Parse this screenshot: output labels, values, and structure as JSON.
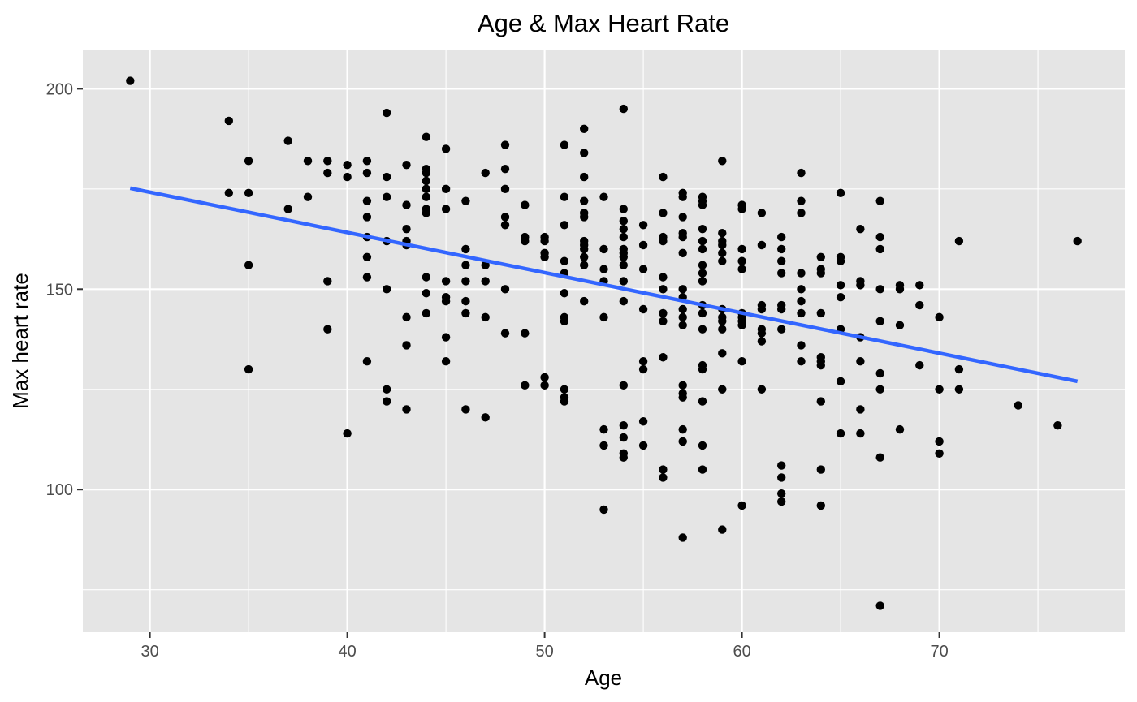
{
  "chart_data": {
    "type": "scatter",
    "title": "Age & Max Heart Rate",
    "xlabel": "Age",
    "ylabel": "Max heart rate",
    "xlim": [
      26.6,
      79.4
    ],
    "ylim": [
      64.4,
      209.6
    ],
    "xticks": [
      30,
      40,
      50,
      60,
      70
    ],
    "xtick_labels": [
      "30",
      "40",
      "50",
      "60",
      "70"
    ],
    "yticks": [
      100,
      150,
      200
    ],
    "ytick_labels": [
      "100",
      "150",
      "200"
    ],
    "x_minor_breaks": [
      35,
      45,
      55,
      65,
      75
    ],
    "y_minor_breaks": [
      75,
      125,
      175
    ],
    "grid": true,
    "panel_background": "#e5e5e5",
    "grid_color": "#ffffff",
    "point_color": "#000000",
    "series": [
      {
        "points": [
          [
            29,
            202
          ],
          [
            34,
            192
          ],
          [
            34,
            174
          ],
          [
            35,
            182
          ],
          [
            35,
            174
          ],
          [
            35,
            156
          ],
          [
            35,
            130
          ],
          [
            37,
            187
          ],
          [
            37,
            170
          ],
          [
            38,
            182
          ],
          [
            38,
            173
          ],
          [
            39,
            182
          ],
          [
            39,
            179
          ],
          [
            39,
            152
          ],
          [
            39,
            140
          ],
          [
            40,
            181
          ],
          [
            40,
            178
          ],
          [
            40,
            114
          ],
          [
            41,
            182
          ],
          [
            41,
            179
          ],
          [
            41,
            172
          ],
          [
            41,
            168
          ],
          [
            41,
            163
          ],
          [
            41,
            158
          ],
          [
            41,
            153
          ],
          [
            41,
            132
          ],
          [
            42,
            194
          ],
          [
            42,
            178
          ],
          [
            42,
            173
          ],
          [
            42,
            162
          ],
          [
            42,
            150
          ],
          [
            42,
            125
          ],
          [
            42,
            122
          ],
          [
            43,
            181
          ],
          [
            43,
            171
          ],
          [
            43,
            165
          ],
          [
            43,
            162
          ],
          [
            43,
            161
          ],
          [
            43,
            143
          ],
          [
            43,
            136
          ],
          [
            43,
            120
          ],
          [
            44,
            188
          ],
          [
            44,
            180
          ],
          [
            44,
            179
          ],
          [
            44,
            177
          ],
          [
            44,
            175
          ],
          [
            44,
            173
          ],
          [
            44,
            170
          ],
          [
            44,
            169
          ],
          [
            44,
            153
          ],
          [
            44,
            149
          ],
          [
            44,
            144
          ],
          [
            45,
            185
          ],
          [
            45,
            175
          ],
          [
            45,
            170
          ],
          [
            45,
            152
          ],
          [
            45,
            148
          ],
          [
            45,
            147
          ],
          [
            45,
            138
          ],
          [
            45,
            132
          ],
          [
            46,
            172
          ],
          [
            46,
            160
          ],
          [
            46,
            156
          ],
          [
            46,
            152
          ],
          [
            46,
            147
          ],
          [
            46,
            144
          ],
          [
            46,
            120
          ],
          [
            47,
            179
          ],
          [
            47,
            156
          ],
          [
            47,
            152
          ],
          [
            47,
            143
          ],
          [
            47,
            118
          ],
          [
            48,
            186
          ],
          [
            48,
            180
          ],
          [
            48,
            175
          ],
          [
            48,
            168
          ],
          [
            48,
            166
          ],
          [
            48,
            150
          ],
          [
            48,
            139
          ],
          [
            49,
            171
          ],
          [
            49,
            163
          ],
          [
            49,
            162
          ],
          [
            49,
            139
          ],
          [
            49,
            126
          ],
          [
            50,
            163
          ],
          [
            50,
            162
          ],
          [
            50,
            159
          ],
          [
            50,
            158
          ],
          [
            50,
            128
          ],
          [
            50,
            126
          ],
          [
            51,
            186
          ],
          [
            51,
            173
          ],
          [
            51,
            166
          ],
          [
            51,
            157
          ],
          [
            51,
            154
          ],
          [
            51,
            149
          ],
          [
            51,
            143
          ],
          [
            51,
            142
          ],
          [
            51,
            125
          ],
          [
            51,
            123
          ],
          [
            51,
            122
          ],
          [
            52,
            190
          ],
          [
            52,
            184
          ],
          [
            52,
            178
          ],
          [
            52,
            172
          ],
          [
            52,
            169
          ],
          [
            52,
            168
          ],
          [
            52,
            162
          ],
          [
            52,
            161
          ],
          [
            52,
            160
          ],
          [
            52,
            158
          ],
          [
            52,
            156
          ],
          [
            52,
            147
          ],
          [
            53,
            173
          ],
          [
            53,
            160
          ],
          [
            53,
            155
          ],
          [
            53,
            152
          ],
          [
            53,
            143
          ],
          [
            53,
            115
          ],
          [
            53,
            111
          ],
          [
            53,
            95
          ],
          [
            54,
            195
          ],
          [
            54,
            170
          ],
          [
            54,
            167
          ],
          [
            54,
            165
          ],
          [
            54,
            163
          ],
          [
            54,
            160
          ],
          [
            54,
            159
          ],
          [
            54,
            158
          ],
          [
            54,
            156
          ],
          [
            54,
            152
          ],
          [
            54,
            147
          ],
          [
            54,
            126
          ],
          [
            54,
            116
          ],
          [
            54,
            113
          ],
          [
            54,
            109
          ],
          [
            54,
            108
          ],
          [
            55,
            166
          ],
          [
            55,
            161
          ],
          [
            55,
            155
          ],
          [
            55,
            145
          ],
          [
            55,
            132
          ],
          [
            55,
            130
          ],
          [
            55,
            117
          ],
          [
            55,
            111
          ],
          [
            56,
            178
          ],
          [
            56,
            169
          ],
          [
            56,
            163
          ],
          [
            56,
            162
          ],
          [
            56,
            153
          ],
          [
            56,
            150
          ],
          [
            56,
            144
          ],
          [
            56,
            142
          ],
          [
            56,
            133
          ],
          [
            56,
            105
          ],
          [
            56,
            103
          ],
          [
            57,
            174
          ],
          [
            57,
            173
          ],
          [
            57,
            168
          ],
          [
            57,
            164
          ],
          [
            57,
            163
          ],
          [
            57,
            159
          ],
          [
            57,
            150
          ],
          [
            57,
            148
          ],
          [
            57,
            145
          ],
          [
            57,
            143
          ],
          [
            57,
            141
          ],
          [
            57,
            126
          ],
          [
            57,
            124
          ],
          [
            57,
            123
          ],
          [
            57,
            115
          ],
          [
            57,
            112
          ],
          [
            57,
            88
          ],
          [
            58,
            173
          ],
          [
            58,
            172
          ],
          [
            58,
            171
          ],
          [
            58,
            165
          ],
          [
            58,
            162
          ],
          [
            58,
            160
          ],
          [
            58,
            156
          ],
          [
            58,
            154
          ],
          [
            58,
            152
          ],
          [
            58,
            146
          ],
          [
            58,
            144
          ],
          [
            58,
            140
          ],
          [
            58,
            131
          ],
          [
            58,
            130
          ],
          [
            58,
            122
          ],
          [
            58,
            111
          ],
          [
            58,
            105
          ],
          [
            59,
            182
          ],
          [
            59,
            164
          ],
          [
            59,
            162
          ],
          [
            59,
            161
          ],
          [
            59,
            159
          ],
          [
            59,
            157
          ],
          [
            59,
            145
          ],
          [
            59,
            143
          ],
          [
            59,
            142
          ],
          [
            59,
            140
          ],
          [
            59,
            134
          ],
          [
            59,
            125
          ],
          [
            59,
            90
          ],
          [
            60,
            171
          ],
          [
            60,
            170
          ],
          [
            60,
            160
          ],
          [
            60,
            157
          ],
          [
            60,
            155
          ],
          [
            60,
            144
          ],
          [
            60,
            143
          ],
          [
            60,
            142
          ],
          [
            60,
            141
          ],
          [
            60,
            132
          ],
          [
            60,
            96
          ],
          [
            61,
            169
          ],
          [
            61,
            161
          ],
          [
            61,
            146
          ],
          [
            61,
            145
          ],
          [
            61,
            140
          ],
          [
            61,
            139
          ],
          [
            61,
            137
          ],
          [
            61,
            125
          ],
          [
            62,
            163
          ],
          [
            62,
            160
          ],
          [
            62,
            157
          ],
          [
            62,
            154
          ],
          [
            62,
            146
          ],
          [
            62,
            145
          ],
          [
            62,
            140
          ],
          [
            62,
            106
          ],
          [
            62,
            103
          ],
          [
            62,
            99
          ],
          [
            62,
            97
          ],
          [
            63,
            179
          ],
          [
            63,
            172
          ],
          [
            63,
            169
          ],
          [
            63,
            154
          ],
          [
            63,
            150
          ],
          [
            63,
            147
          ],
          [
            63,
            144
          ],
          [
            63,
            136
          ],
          [
            63,
            132
          ],
          [
            64,
            158
          ],
          [
            64,
            155
          ],
          [
            64,
            154
          ],
          [
            64,
            144
          ],
          [
            64,
            133
          ],
          [
            64,
            132
          ],
          [
            64,
            131
          ],
          [
            64,
            122
          ],
          [
            64,
            105
          ],
          [
            64,
            96
          ],
          [
            65,
            174
          ],
          [
            65,
            158
          ],
          [
            65,
            157
          ],
          [
            65,
            151
          ],
          [
            65,
            148
          ],
          [
            65,
            140
          ],
          [
            65,
            127
          ],
          [
            65,
            114
          ],
          [
            66,
            165
          ],
          [
            66,
            152
          ],
          [
            66,
            151
          ],
          [
            66,
            138
          ],
          [
            66,
            132
          ],
          [
            66,
            120
          ],
          [
            66,
            114
          ],
          [
            67,
            172
          ],
          [
            67,
            163
          ],
          [
            67,
            160
          ],
          [
            67,
            150
          ],
          [
            67,
            142
          ],
          [
            67,
            129
          ],
          [
            67,
            125
          ],
          [
            67,
            108
          ],
          [
            67,
            71
          ],
          [
            68,
            151
          ],
          [
            68,
            150
          ],
          [
            68,
            141
          ],
          [
            68,
            115
          ],
          [
            69,
            151
          ],
          [
            69,
            146
          ],
          [
            69,
            131
          ],
          [
            70,
            143
          ],
          [
            70,
            125
          ],
          [
            70,
            112
          ],
          [
            70,
            109
          ],
          [
            71,
            162
          ],
          [
            71,
            130
          ],
          [
            71,
            125
          ],
          [
            74,
            121
          ],
          [
            76,
            116
          ],
          [
            77,
            162
          ]
        ]
      }
    ],
    "trend_line": {
      "color": "#3366ff",
      "start": [
        29,
        175.2
      ],
      "end": [
        77,
        127.0
      ]
    }
  }
}
